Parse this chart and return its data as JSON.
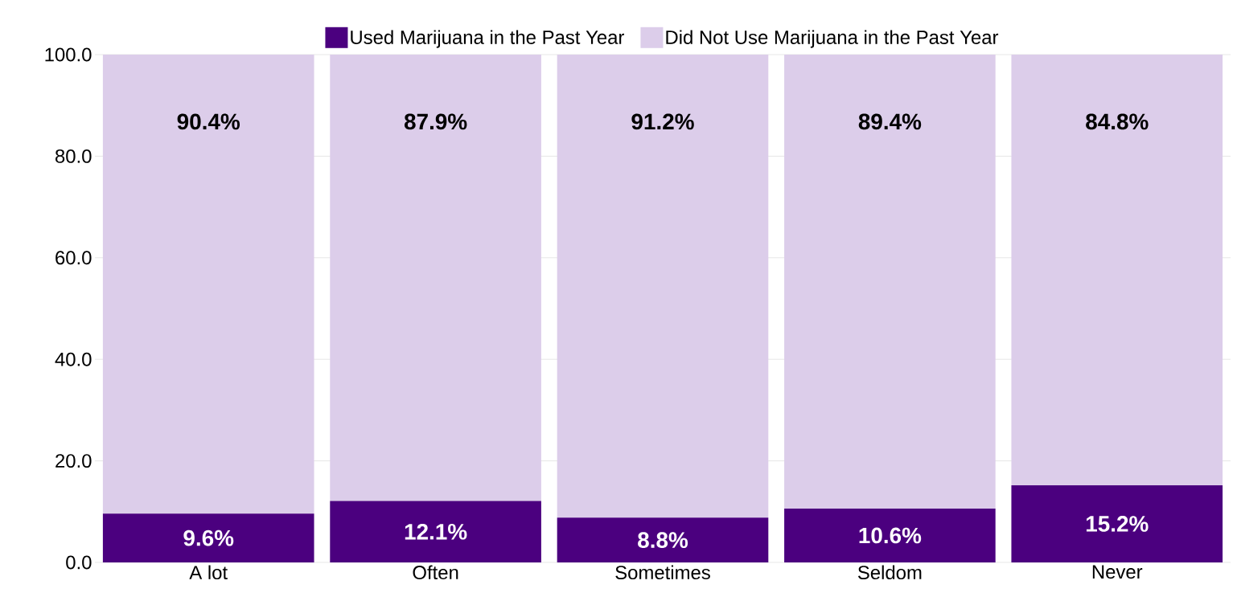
{
  "chart_data": {
    "type": "bar",
    "stacked": true,
    "categories": [
      "A lot",
      "Often",
      "Sometimes",
      "Seldom",
      "Never"
    ],
    "series": [
      {
        "name": "Used Marijuana in the Past Year",
        "color": "#4b007f",
        "values": [
          9.6,
          12.1,
          8.8,
          10.6,
          15.2
        ],
        "value_labels": [
          "9.6%",
          "12.1%",
          "8.8%",
          "10.6%",
          "15.2%"
        ]
      },
      {
        "name": "Did Not Use Marijuana in the Past Year",
        "color": "#dccdea",
        "values": [
          90.4,
          87.9,
          91.2,
          89.4,
          84.8
        ],
        "value_labels": [
          "90.4%",
          "87.9%",
          "91.2%",
          "89.4%",
          "84.8%"
        ]
      }
    ],
    "ylim": [
      0,
      100
    ],
    "yticks": [
      {
        "value": 0,
        "label": "0.0"
      },
      {
        "value": 20,
        "label": "20.0"
      },
      {
        "value": 40,
        "label": "40.0"
      },
      {
        "value": 60,
        "label": "60.0"
      },
      {
        "value": 80,
        "label": "80.0"
      },
      {
        "value": 100,
        "label": "100.0"
      }
    ],
    "grid": "y",
    "legend": "top"
  }
}
